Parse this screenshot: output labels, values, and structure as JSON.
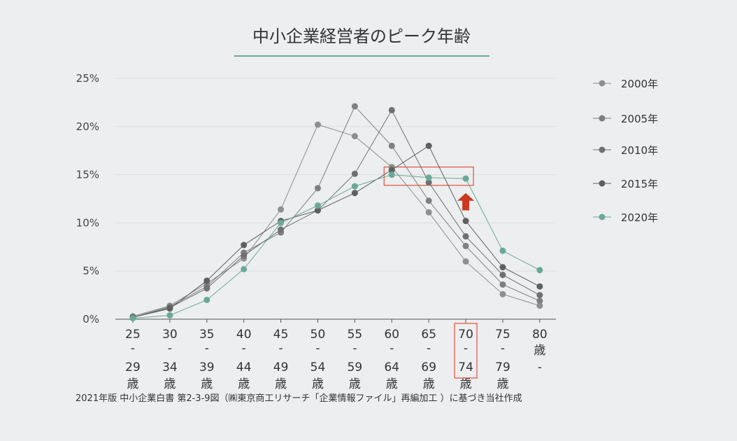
{
  "chart_data": {
    "type": "line",
    "title": "中小企業経営者のピーク年齢",
    "source": "2021年版 中小企業白書 第2-3-9図（㈱東京商工リサーチ「企業情報ファイル」再編加工 ）に基づき当社作成",
    "categories": [
      "25-29歳",
      "30-34歳",
      "35-39歳",
      "40-44歳",
      "45-49歳",
      "50-54歳",
      "55-59歳",
      "60-64歳",
      "65-69歳",
      "70-74歳",
      "75-79歳",
      "80歳-"
    ],
    "x_labels": [
      [
        "25",
        "-",
        "29",
        "歳"
      ],
      [
        "30",
        "-",
        "34",
        "歳"
      ],
      [
        "35",
        "-",
        "39",
        "歳"
      ],
      [
        "40",
        "-",
        "44",
        "歳"
      ],
      [
        "45",
        "-",
        "49",
        "歳"
      ],
      [
        "50",
        "-",
        "54",
        "歳"
      ],
      [
        "55",
        "-",
        "59",
        "歳"
      ],
      [
        "60",
        "-",
        "64",
        "歳"
      ],
      [
        "65",
        "-",
        "69",
        "歳"
      ],
      [
        "70",
        "-",
        "74",
        "歳"
      ],
      [
        "75",
        "-",
        "79",
        "歳"
      ],
      [
        "80",
        "歳",
        "-",
        ""
      ]
    ],
    "y_ticks": [
      "0%",
      "5%",
      "10%",
      "15%",
      "20%",
      "25%"
    ],
    "ylim": [
      0,
      25
    ],
    "grid": true,
    "legend_position": "right",
    "series": [
      {
        "name": "2000年",
        "color": "#8f8f8f",
        "values": [
          0.3,
          1.4,
          3.7,
          6.3,
          11.4,
          20.2,
          19.0,
          15.8,
          11.1,
          6.0,
          2.6,
          1.4
        ]
      },
      {
        "name": "2005年",
        "color": "#7f7f7f",
        "values": [
          0.2,
          1.3,
          3.4,
          6.9,
          9.0,
          13.6,
          22.1,
          18.0,
          12.3,
          7.6,
          3.6,
          1.9
        ]
      },
      {
        "name": "2010年",
        "color": "#707070",
        "values": [
          0.2,
          1.2,
          3.2,
          6.6,
          9.3,
          11.3,
          15.1,
          21.7,
          14.2,
          8.6,
          4.6,
          2.5
        ]
      },
      {
        "name": "2015年",
        "color": "#5f5f5f",
        "values": [
          0.2,
          1.1,
          4.0,
          7.7,
          10.2,
          11.3,
          13.1,
          15.5,
          18.0,
          10.2,
          5.4,
          3.4
        ]
      },
      {
        "name": "2020年",
        "color": "#6aa898",
        "values": [
          0.1,
          0.4,
          2.0,
          5.2,
          10.0,
          11.8,
          13.8,
          15.0,
          14.7,
          14.6,
          7.1,
          5.1
        ]
      }
    ],
    "highlight": {
      "category": "70-74歳",
      "box_color": "#e0503a",
      "arrow_color": "#c8391f"
    }
  }
}
